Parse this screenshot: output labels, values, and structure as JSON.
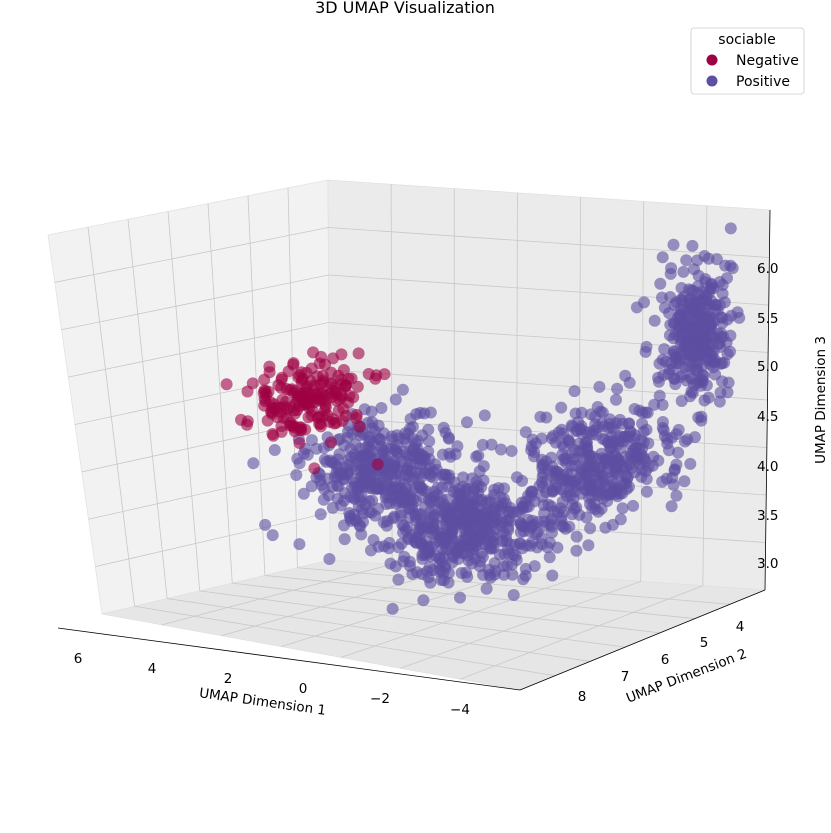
{
  "chart_data": {
    "type": "scatter",
    "title": "3D UMAP Visualization",
    "xlabel": "UMAP Dimension 1",
    "ylabel": "UMAP Dimension 2",
    "zlabel": "UMAP Dimension 3",
    "xlim": [
      -5,
      7
    ],
    "ylim": [
      3,
      9
    ],
    "zlim": [
      2.7,
      6.4
    ],
    "xticks": [
      6,
      4,
      2,
      0,
      -2,
      -4
    ],
    "xtick_labels": [
      "6",
      "4",
      "2",
      "0",
      "−2",
      "−4"
    ],
    "yticks": [
      4,
      5,
      6,
      7,
      8
    ],
    "ytick_labels": [
      "4",
      "5",
      "6",
      "7",
      "8"
    ],
    "zticks": [
      3.0,
      3.5,
      4.0,
      4.5,
      5.0,
      5.5,
      6.0
    ],
    "ztick_labels": [
      "3.0",
      "3.5",
      "4.0",
      "4.5",
      "5.0",
      "5.5",
      "6.0"
    ],
    "legend": {
      "title": "sociable",
      "position": "top-right",
      "entries": [
        {
          "label": "Negative",
          "color": "#9e0142"
        },
        {
          "label": "Positive",
          "color": "#5e4fa2"
        }
      ]
    },
    "series": [
      {
        "name": "Negative",
        "color": "#9e0142",
        "clusters": [
          {
            "center": [
              5.5,
              5.2,
              4.4
            ],
            "spread": [
              0.9,
              1.0,
              0.3
            ],
            "count": 180
          }
        ]
      },
      {
        "name": "Positive",
        "color": "#5e4fa2",
        "clusters": [
          {
            "center": [
              2.2,
              6.2,
              4.0
            ],
            "spread": [
              1.5,
              1.1,
              0.4
            ],
            "count": 380
          },
          {
            "center": [
              -0.8,
              6.8,
              3.7
            ],
            "spread": [
              1.6,
              1.0,
              0.35
            ],
            "count": 420
          },
          {
            "center": [
              -3.0,
              5.5,
              4.2
            ],
            "spread": [
              1.0,
              1.3,
              0.45
            ],
            "count": 380
          },
          {
            "center": [
              -4.2,
              4.0,
              5.3
            ],
            "spread": [
              0.6,
              0.6,
              0.55
            ],
            "count": 300
          }
        ]
      }
    ]
  }
}
